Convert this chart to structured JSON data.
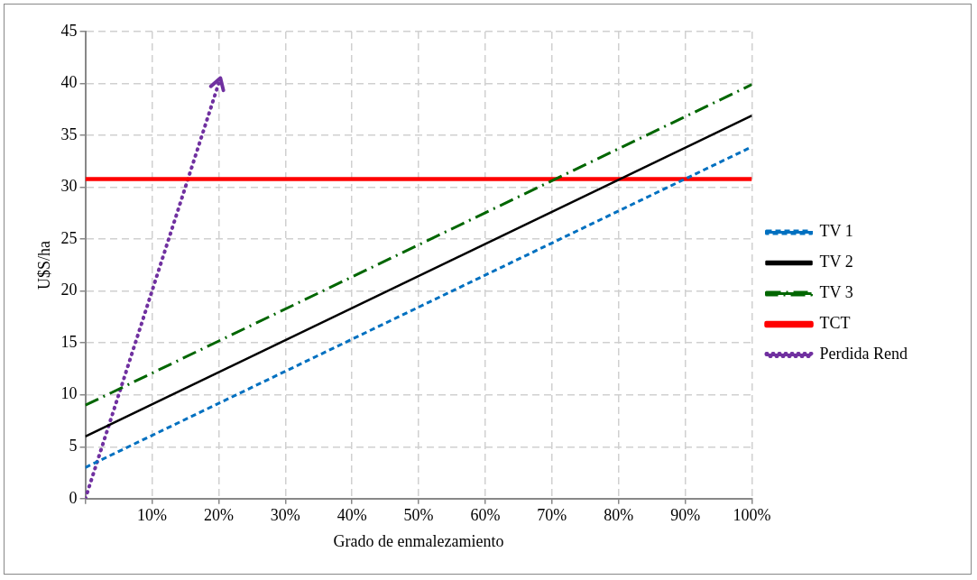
{
  "chart_data": {
    "type": "line",
    "xlabel": "Grado de enmalezamiento",
    "ylabel": "U$S/ha",
    "xlim": [
      0,
      100
    ],
    "xticks": [
      {
        "value": 0,
        "label": null
      },
      {
        "value": 10,
        "label": "10%"
      },
      {
        "value": 20,
        "label": "20%"
      },
      {
        "value": 30,
        "label": "30%"
      },
      {
        "value": 40,
        "label": "40%"
      },
      {
        "value": 50,
        "label": "50%"
      },
      {
        "value": 60,
        "label": "60%"
      },
      {
        "value": 70,
        "label": "70%"
      },
      {
        "value": 80,
        "label": "80%"
      },
      {
        "value": 90,
        "label": "90%"
      },
      {
        "value": 100,
        "label": "100%"
      }
    ],
    "ylim": [
      0,
      45
    ],
    "yticks": [
      0,
      5,
      10,
      15,
      20,
      25,
      30,
      35,
      40,
      45
    ],
    "grid": true,
    "legend": "right",
    "series": [
      {
        "name": "TV 1",
        "color": "#0070c0",
        "line_style": "dashed",
        "x": [
          0,
          100
        ],
        "values": [
          3,
          33.9
        ]
      },
      {
        "name": "TV 2",
        "color": "#000000",
        "line_style": "solid",
        "x": [
          0,
          100
        ],
        "values": [
          6,
          36.9
        ]
      },
      {
        "name": "TV 3",
        "color": "#006600",
        "line_style": "dashdot",
        "x": [
          0,
          100
        ],
        "values": [
          9,
          39.9
        ]
      },
      {
        "name": "TCT",
        "color": "#ff0000",
        "line_style": "solid",
        "x": [
          0,
          100
        ],
        "values": [
          30.8,
          30.8
        ]
      },
      {
        "name": "Perdida Rend",
        "color": "#7030a0",
        "line_style": "dotted",
        "x": [
          0,
          20
        ],
        "values": [
          0,
          40
        ]
      }
    ]
  }
}
